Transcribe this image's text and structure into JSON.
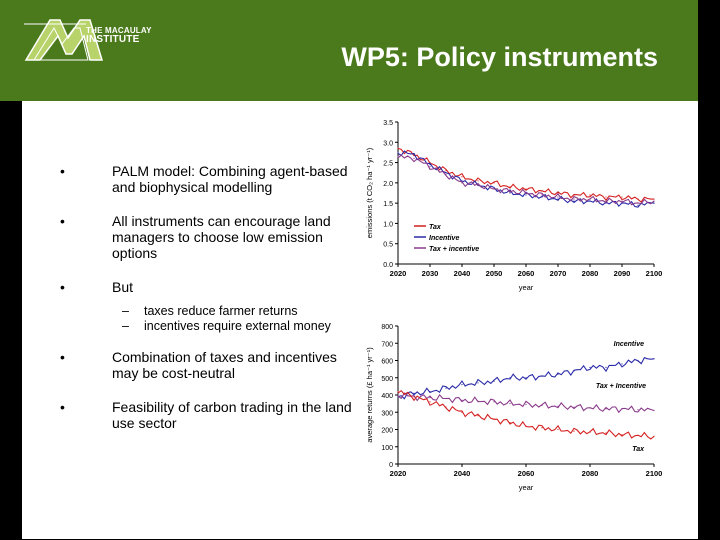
{
  "logo": {
    "line1": "THE MACAULAY",
    "line2": "INSTITUTE"
  },
  "title": "WP5: Policy instruments",
  "bullets": [
    {
      "text": "PALM model: Combining agent-based and biophysical modelling"
    },
    {
      "text": "All instruments can encourage land managers to choose low emission options"
    },
    {
      "text": "But",
      "subs": [
        "taxes reduce farmer returns",
        "incentives require external money"
      ]
    },
    {
      "text": "Combination of taxes and incentives may be cost-neutral"
    },
    {
      "text": "Feasibility of carbon trading in the land use sector"
    }
  ],
  "bullet_glyph": "•",
  "sub_glyph": "–",
  "chart_data": [
    {
      "type": "line",
      "xlabel": "year",
      "ylabel": "emissions (t CO₂ ha⁻¹ yr⁻¹)",
      "xlim": [
        2020,
        2100
      ],
      "ylim": [
        0,
        3.5
      ],
      "xticks": [
        2020,
        2030,
        2040,
        2050,
        2060,
        2070,
        2080,
        2090,
        2100
      ],
      "yticks": [
        "0.0",
        "0.5",
        "1.0",
        "1.5",
        "2.0",
        "2.5",
        "3.0",
        "3.5"
      ],
      "legend": "bottom-left",
      "x": [
        2020,
        2025,
        2030,
        2035,
        2040,
        2045,
        2050,
        2055,
        2060,
        2065,
        2070,
        2075,
        2080,
        2085,
        2090,
        2095,
        2100
      ],
      "series": [
        {
          "name": "Tax",
          "color": "#d42020",
          "values": [
            2.85,
            2.7,
            2.5,
            2.3,
            2.15,
            2.05,
            2.0,
            1.9,
            1.85,
            1.8,
            1.75,
            1.7,
            1.7,
            1.65,
            1.65,
            1.6,
            1.6
          ]
        },
        {
          "name": "Incentive",
          "color": "#2a2aa8",
          "values": [
            2.75,
            2.7,
            2.45,
            2.25,
            2.05,
            1.95,
            1.85,
            1.75,
            1.7,
            1.65,
            1.6,
            1.55,
            1.55,
            1.5,
            1.5,
            1.45,
            1.5
          ]
        },
        {
          "name": "Tax + incentive",
          "color": "#8a3a8a",
          "values": [
            2.65,
            2.6,
            2.4,
            2.2,
            2.0,
            1.95,
            1.85,
            1.8,
            1.75,
            1.7,
            1.65,
            1.6,
            1.6,
            1.55,
            1.55,
            1.5,
            1.55
          ]
        }
      ]
    },
    {
      "type": "line",
      "xlabel": "year",
      "ylabel": "average returns (£ ha⁻¹ yr⁻¹)",
      "xlim": [
        2020,
        2100
      ],
      "ylim": [
        0,
        800
      ],
      "xticks": [
        2020,
        2040,
        2060,
        2080,
        2100
      ],
      "yticks": [
        "0",
        "100",
        "200",
        "300",
        "400",
        "500",
        "600",
        "700",
        "800"
      ],
      "x": [
        2020,
        2025,
        2030,
        2035,
        2040,
        2045,
        2050,
        2055,
        2060,
        2065,
        2070,
        2075,
        2080,
        2085,
        2090,
        2095,
        2100
      ],
      "series": [
        {
          "name": "Incentive",
          "color": "#2a2aa8",
          "values": [
            390,
            410,
            420,
            440,
            460,
            470,
            480,
            500,
            500,
            510,
            520,
            540,
            560,
            560,
            580,
            600,
            610
          ]
        },
        {
          "name": "Tax + incentive",
          "color": "#8a3a8a",
          "values": [
            400,
            390,
            385,
            380,
            370,
            365,
            360,
            350,
            345,
            340,
            335,
            330,
            325,
            320,
            320,
            315,
            310
          ]
        },
        {
          "name": "Tax",
          "color": "#d42020",
          "values": [
            420,
            390,
            360,
            330,
            300,
            280,
            260,
            240,
            220,
            210,
            200,
            190,
            185,
            180,
            170,
            165,
            160
          ]
        }
      ],
      "annotations": [
        "Incentive",
        "Tax + Incentive",
        "Tax"
      ]
    }
  ]
}
